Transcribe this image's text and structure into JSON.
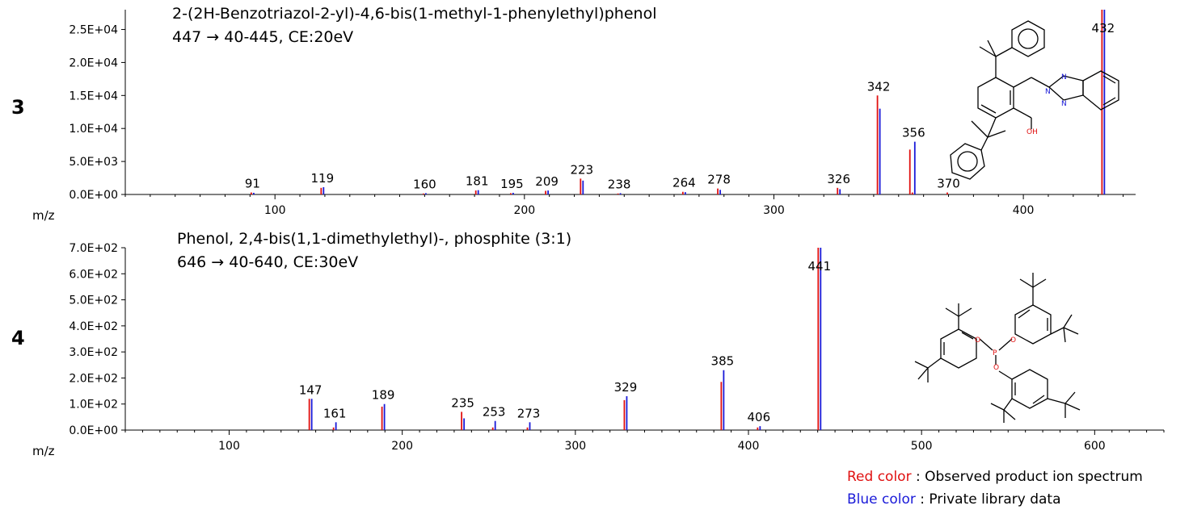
{
  "colors": {
    "observed": "#e01010",
    "library": "#1a1ad8",
    "axis": "#000000"
  },
  "legend": {
    "red_label": "Red color",
    "red_desc": " : Observed product ion spectrum",
    "blue_label": "Blue color",
    "blue_desc": " : Private library data"
  },
  "panels": [
    {
      "number": "3",
      "compound": "2-(2H-Benzotriazol-2-yl)-4,6-bis(1-methyl-1-phenylethyl)phenol",
      "conditions": "447 → 40-445, CE:20eV",
      "xlabel": "m/z",
      "structure_labels": [
        "N",
        "N",
        "N",
        "OH"
      ]
    },
    {
      "number": "4",
      "compound": "Phenol, 2,4-bis(1,1-dimethylethyl)-, phosphite (3:1)",
      "conditions": "646 → 40-640, CE:30eV",
      "xlabel": "m/z",
      "structure_labels": [
        "O",
        "P",
        "O",
        "O"
      ]
    }
  ],
  "chart_data": [
    {
      "type": "bar",
      "title": "2-(2H-Benzotriazol-2-yl)-4,6-bis(1-methyl-1-phenylethyl)phenol",
      "xlabel": "m/z",
      "xlim": [
        40,
        445
      ],
      "ylim": [
        0,
        28000
      ],
      "x_ticks": [
        100,
        200,
        300,
        400
      ],
      "y_ticks": [
        0,
        5000,
        10000,
        15000,
        20000,
        25000
      ],
      "y_tick_labels": [
        "0.0E+00",
        "5.0E+03",
        "1.0E+04",
        "1.5E+04",
        "2.0E+04",
        "2.5E+04"
      ],
      "series": [
        {
          "name": "Observed product ion spectrum",
          "x": [
            91,
            119,
            160,
            181,
            195,
            209,
            223,
            238,
            264,
            278,
            326,
            342,
            355,
            356,
            370,
            432
          ],
          "y": [
            300,
            1000,
            150,
            600,
            200,
            550,
            2400,
            150,
            400,
            900,
            1000,
            15000,
            6800,
            300,
            300,
            29000
          ]
        },
        {
          "name": "Private library data",
          "x": [
            91,
            119,
            160,
            181,
            195,
            209,
            223,
            238,
            264,
            278,
            326,
            342,
            356,
            432
          ],
          "y": [
            250,
            1100,
            200,
            650,
            250,
            600,
            2100,
            200,
            350,
            700,
            800,
            13000,
            8000,
            29000
          ]
        }
      ],
      "peak_labels": [
        "91",
        "119",
        "160",
        "181",
        "195",
        "209",
        "223",
        "238",
        "264",
        "278",
        "326",
        "342",
        "356",
        "370",
        "432"
      ],
      "peak_label_x": [
        91,
        119,
        160,
        181,
        195,
        209,
        223,
        238,
        264,
        278,
        326,
        342,
        356,
        370,
        432
      ]
    },
    {
      "type": "bar",
      "title": "Phenol, 2,4-bis(1,1-dimethylethyl)-, phosphite (3:1)",
      "xlabel": "m/z",
      "xlim": [
        40,
        640
      ],
      "ylim": [
        0,
        700
      ],
      "x_ticks": [
        100,
        200,
        300,
        400,
        500,
        600
      ],
      "y_ticks": [
        0,
        100,
        200,
        300,
        400,
        500,
        600,
        700
      ],
      "y_tick_labels": [
        "0.0E+00",
        "1.0E+02",
        "2.0E+02",
        "3.0E+02",
        "4.0E+02",
        "5.0E+02",
        "6.0E+02",
        "7.0E+02"
      ],
      "series": [
        {
          "name": "Observed product ion spectrum",
          "x": [
            147,
            161,
            189,
            235,
            253,
            273,
            329,
            385,
            406,
            441
          ],
          "y": [
            120,
            10,
            90,
            70,
            10,
            10,
            115,
            185,
            10,
            700
          ]
        },
        {
          "name": "Private library data",
          "x": [
            147,
            161,
            189,
            235,
            253,
            273,
            329,
            385,
            406,
            441
          ],
          "y": [
            120,
            30,
            100,
            45,
            35,
            30,
            130,
            230,
            15,
            700
          ]
        }
      ],
      "peak_labels": [
        "147",
        "161",
        "189",
        "235",
        "253",
        "273",
        "329",
        "385",
        "406",
        "441"
      ],
      "peak_label_x": [
        147,
        161,
        189,
        235,
        253,
        273,
        329,
        385,
        406,
        441
      ]
    }
  ]
}
